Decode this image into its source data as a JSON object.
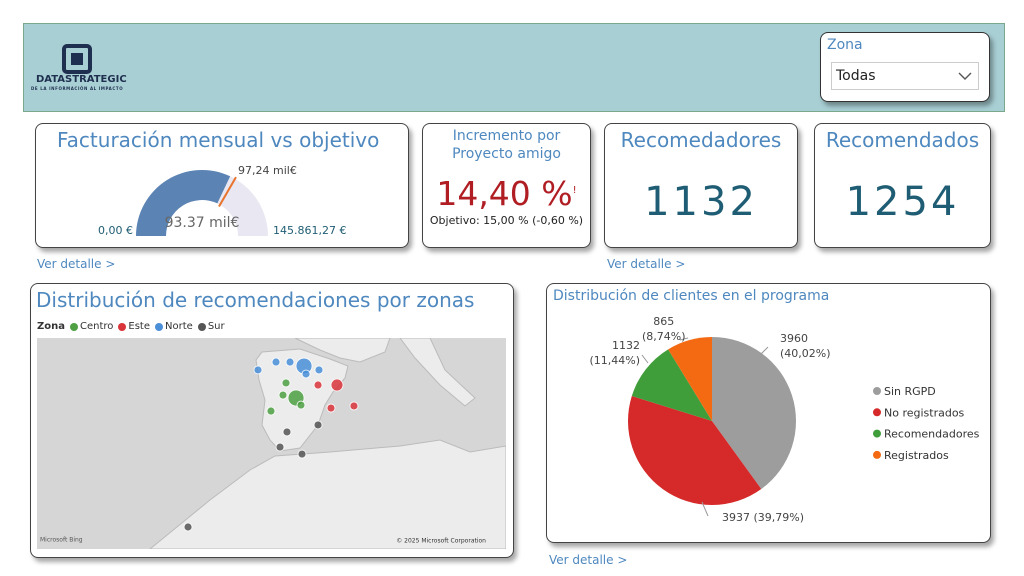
{
  "header": {
    "logo_name": "DATASTRATEGIC",
    "logo_tagline": "DE LA INFORMACIÓN AL IMPACTO",
    "filter": {
      "label": "Zona",
      "value": "Todas"
    }
  },
  "gauge": {
    "title": "Facturación mensual vs objetivo",
    "min": {
      "value": 0,
      "label": "0,00 €"
    },
    "max": {
      "value": 145861.27,
      "label": "145.861,27 €"
    },
    "value": {
      "value": 93370,
      "label": "93.37 mil€"
    },
    "target": {
      "value": 97240,
      "label": "97,24 mil€"
    },
    "color": "#5b84b4",
    "track_color": "#e9e7f1",
    "target_color": "#e8732c"
  },
  "kpi_increment": {
    "title": "Incremento por Proyecto amigo",
    "value": 14.4,
    "value_label": "14,40 %",
    "alert": "!",
    "goal_text": "Objetivo: 15,00 % (-0,60 %)"
  },
  "kpi_recommenders": {
    "title": "Recomedadores",
    "value": 1132
  },
  "kpi_recommended": {
    "title": "Recomendados",
    "value": 1254
  },
  "links": [
    "Ver detalle >",
    "Ver detalle >",
    "Ver detalle >"
  ],
  "map": {
    "title": "Distribución de recomendaciones por zonas",
    "legend_title": "Zona",
    "zones": [
      {
        "name": "Centro",
        "color": "#4ea043",
        "points": [
          {
            "lon": -5.94,
            "lat": 41.35,
            "size": 1
          },
          {
            "lon": -6.38,
            "lat": 40.42,
            "size": 1
          },
          {
            "lon": -4.49,
            "lat": 40.19,
            "size": 3
          },
          {
            "lon": -3.77,
            "lat": 39.65,
            "size": 1
          },
          {
            "lon": -8.12,
            "lat": 39.19,
            "size": 1
          }
        ]
      },
      {
        "name": "Este",
        "color": "#d9343a",
        "points": [
          {
            "lon": -1.3,
            "lat": 41.19,
            "size": 1
          },
          {
            "lon": 1.45,
            "lat": 41.19,
            "size": 2
          },
          {
            "lon": 0.58,
            "lat": 39.42,
            "size": 1
          },
          {
            "lon": 3.91,
            "lat": 39.58,
            "size": 1
          }
        ]
      },
      {
        "name": "Norte",
        "color": "#4a8fd8",
        "points": [
          {
            "lon": -7.39,
            "lat": 42.96,
            "size": 1
          },
          {
            "lon": -5.36,
            "lat": 42.96,
            "size": 1
          },
          {
            "lon": -3.33,
            "lat": 42.65,
            "size": 3
          },
          {
            "lon": -3.04,
            "lat": 42.04,
            "size": 1
          },
          {
            "lon": -10.0,
            "lat": 42.35,
            "size": 1
          },
          {
            "lon": -1.16,
            "lat": 42.35,
            "size": 1
          }
        ]
      },
      {
        "name": "Sur",
        "color": "#555555",
        "points": [
          {
            "lon": -5.8,
            "lat": 37.58,
            "size": 1
          },
          {
            "lon": -1.3,
            "lat": 38.12,
            "size": 1
          },
          {
            "lon": -6.81,
            "lat": 36.42,
            "size": 1
          },
          {
            "lon": -3.62,
            "lat": 35.88,
            "size": 1
          },
          {
            "lon": -20.14,
            "lat": 30.27,
            "size": 1
          }
        ]
      }
    ],
    "credits": [
      "Microsoft Bing",
      "© 2025 Microsoft Corporation"
    ]
  },
  "pie": {
    "title": "Distribución de clientes en el programa",
    "categories": [
      "Sin RGPD",
      "No registrados",
      "Recomendadores",
      "Registrados"
    ],
    "values": [
      3960,
      3937,
      1132,
      865
    ],
    "value_labels": [
      "3960\n(40,02%)",
      "3937 (39,79%)",
      "1132\n(11,44%)",
      "865\n(8,74%)"
    ],
    "colors": [
      "#9d9d9d",
      "#d62a2a",
      "#3f9d3a",
      "#f36a12"
    ]
  }
}
